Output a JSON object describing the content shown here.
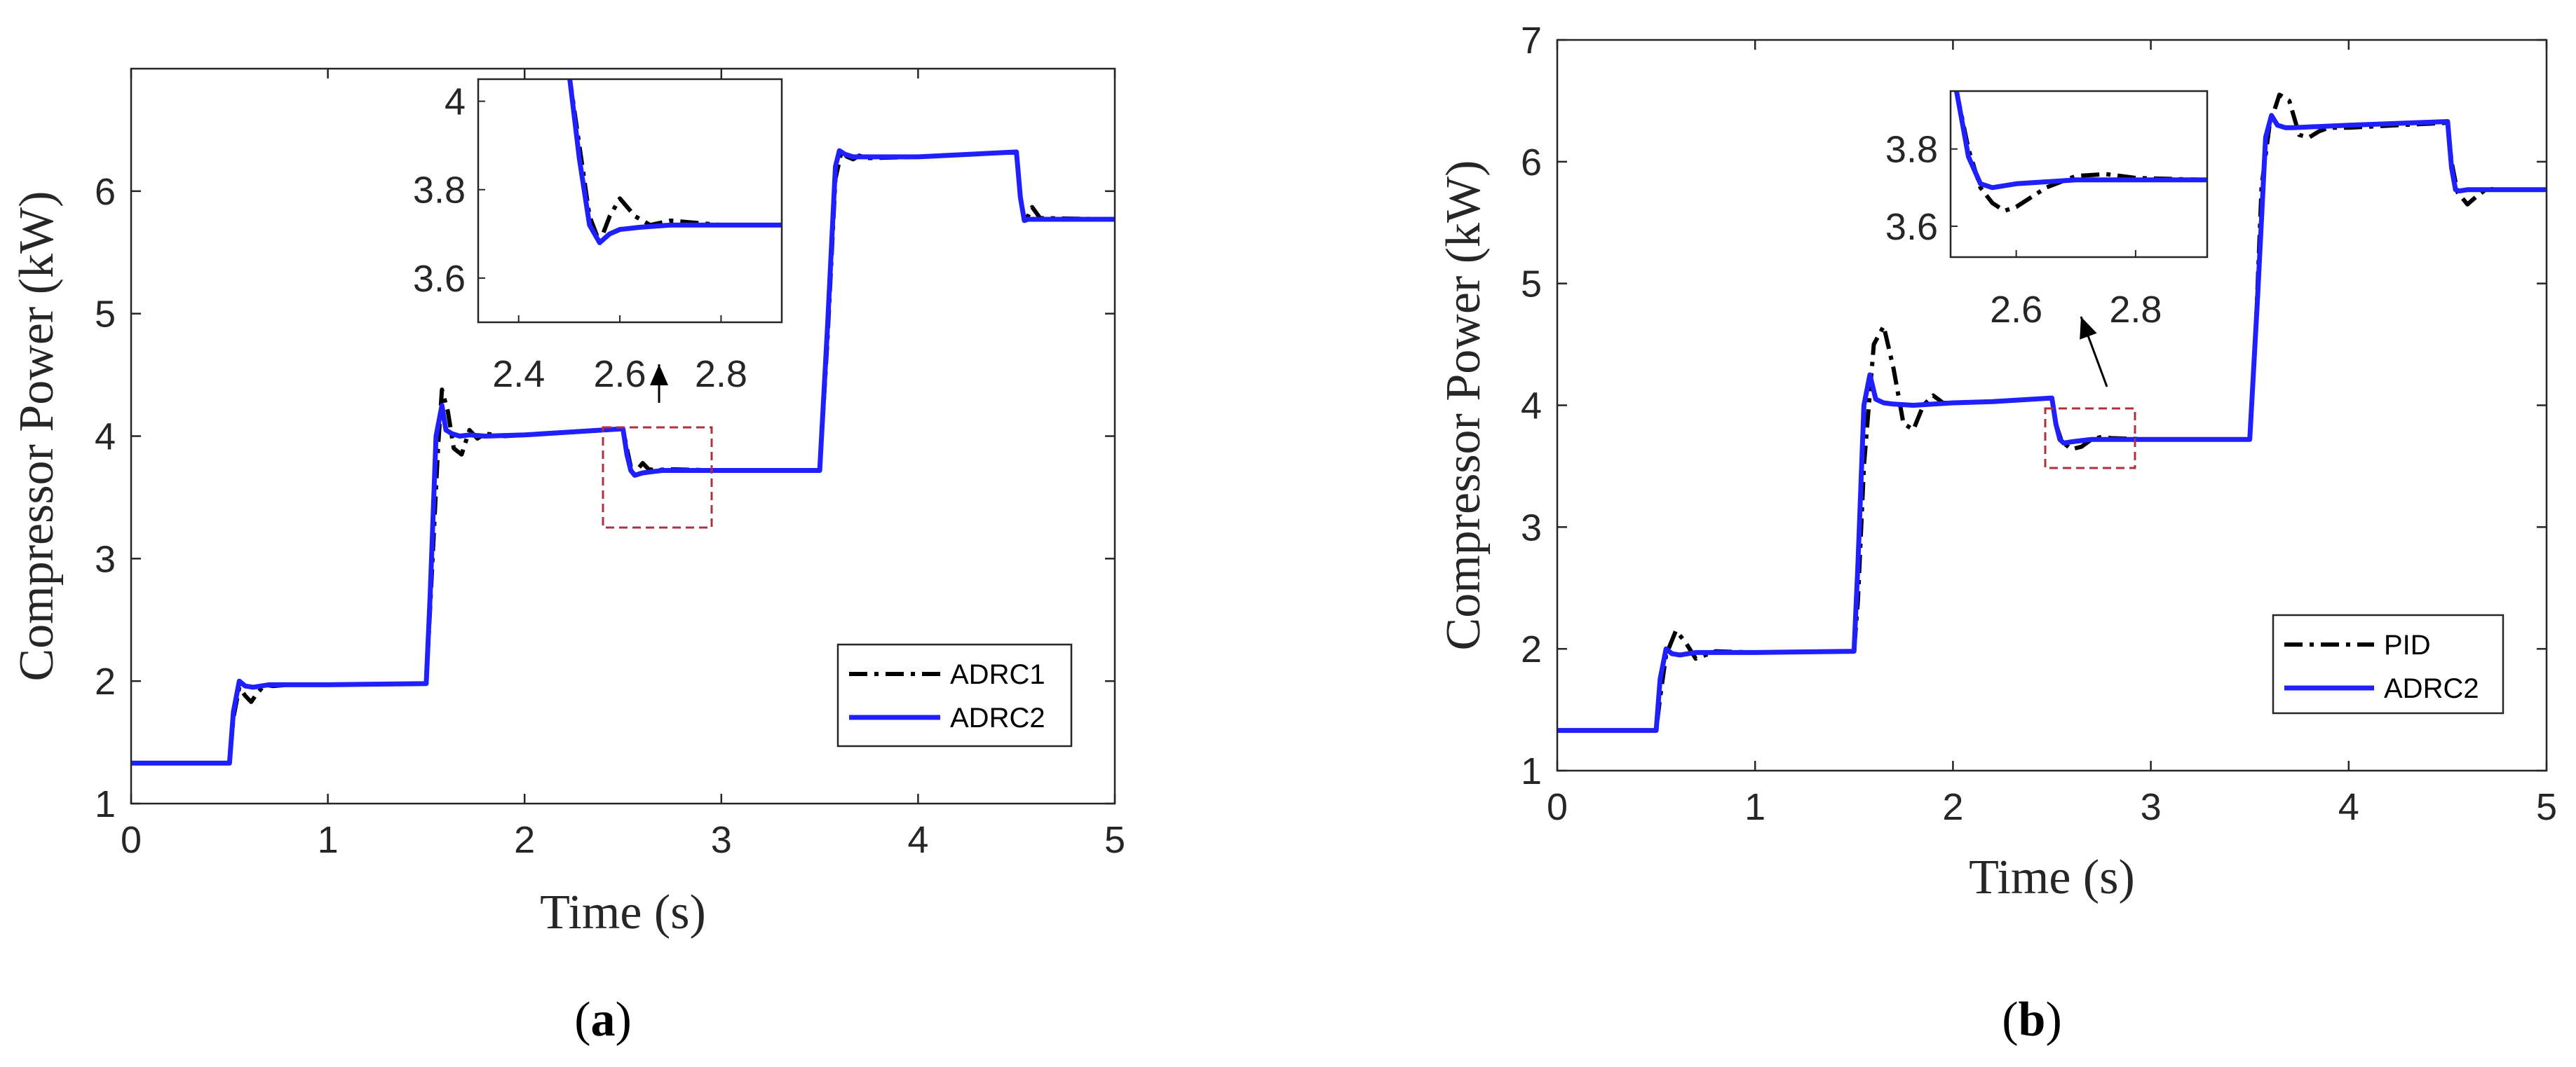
{
  "colors": {
    "series1": "#000000",
    "series2": "#1f1fff",
    "zoom_box": "#b03040",
    "axis": "#262626"
  },
  "chart_data": [
    {
      "type": "line",
      "panel_label": {
        "open": "(",
        "letter": "a",
        "close": ")"
      },
      "xlabel": "Time (s)",
      "ylabel": "Compressor Power (kW)",
      "xlim": [
        0,
        5
      ],
      "ylim": [
        1,
        7
      ],
      "xticks": [
        "0",
        "1",
        "2",
        "3",
        "4",
        "5"
      ],
      "yticks": [
        "1",
        "2",
        "3",
        "4",
        "5",
        "6"
      ],
      "grid": false,
      "legend_position": "lower-right",
      "series": [
        {
          "name": "ADRC1",
          "style": "dash-dot",
          "x": [
            0,
            0.5,
            0.52,
            0.55,
            0.58,
            0.61,
            0.64,
            0.68,
            0.72,
            0.8,
            1.0,
            1.5,
            1.52,
            1.56,
            1.58,
            1.61,
            1.64,
            1.68,
            1.72,
            1.76,
            1.8,
            1.9,
            2.0,
            2.2,
            2.5,
            2.52,
            2.54,
            2.56,
            2.58,
            2.6,
            2.63,
            2.67,
            2.72,
            3.0,
            3.5,
            3.54,
            3.58,
            3.61,
            3.64,
            3.67,
            3.7,
            3.75,
            4.0,
            4.5,
            4.52,
            4.54,
            4.56,
            4.58,
            4.62,
            5.0
          ],
          "y": [
            1.33,
            1.33,
            1.7,
            1.95,
            1.88,
            1.83,
            1.9,
            1.97,
            1.96,
            1.97,
            1.97,
            1.98,
            2.6,
            3.9,
            4.38,
            4.2,
            3.9,
            3.85,
            4.05,
            3.98,
            4.02,
            4.0,
            4.01,
            4.03,
            4.06,
            3.9,
            3.75,
            3.68,
            3.74,
            3.78,
            3.73,
            3.72,
            3.73,
            3.72,
            3.72,
            4.8,
            6.1,
            6.32,
            6.28,
            6.26,
            6.29,
            6.27,
            6.28,
            6.32,
            5.95,
            5.77,
            5.8,
            5.87,
            5.78,
            5.77
          ]
        },
        {
          "name": "ADRC2",
          "style": "solid",
          "x": [
            0,
            0.5,
            0.52,
            0.55,
            0.58,
            0.62,
            0.66,
            0.7,
            0.8,
            1.0,
            1.5,
            1.52,
            1.55,
            1.58,
            1.6,
            1.63,
            1.67,
            1.72,
            1.8,
            2.0,
            2.2,
            2.5,
            2.52,
            2.54,
            2.56,
            2.6,
            2.65,
            2.7,
            3.0,
            3.5,
            3.54,
            3.58,
            3.6,
            3.63,
            3.67,
            3.72,
            4.0,
            4.5,
            4.52,
            4.54,
            4.56,
            4.6,
            5.0
          ],
          "y": [
            1.33,
            1.33,
            1.75,
            2.0,
            1.96,
            1.95,
            1.96,
            1.97,
            1.97,
            1.97,
            1.98,
            2.7,
            4.0,
            4.25,
            4.05,
            4.02,
            4.0,
            4.01,
            4.0,
            4.01,
            4.03,
            4.06,
            3.85,
            3.72,
            3.68,
            3.7,
            3.71,
            3.72,
            3.72,
            3.72,
            4.9,
            6.2,
            6.33,
            6.3,
            6.28,
            6.28,
            6.28,
            6.32,
            5.95,
            5.76,
            5.77,
            5.77,
            5.77
          ]
        }
      ],
      "inset": {
        "xlim": [
          2.32,
          2.92
        ],
        "ylim": [
          3.5,
          4.05
        ],
        "xticks": [
          "2.4",
          "2.6",
          "2.8"
        ],
        "yticks": [
          "3.6",
          "3.8",
          "4"
        ],
        "series": [
          {
            "name": "ADRC1",
            "x": [
              2.5,
              2.52,
              2.54,
              2.56,
              2.58,
              2.6,
              2.63,
              2.66,
              2.7,
              2.8,
              2.92
            ],
            "y": [
              4.06,
              3.9,
              3.74,
              3.68,
              3.74,
              3.78,
              3.74,
              3.72,
              3.73,
              3.72,
              3.72
            ]
          },
          {
            "name": "ADRC2",
            "x": [
              2.5,
              2.52,
              2.54,
              2.56,
              2.58,
              2.6,
              2.64,
              2.7,
              2.8,
              2.92
            ],
            "y": [
              4.06,
              3.87,
              3.72,
              3.68,
              3.7,
              3.71,
              3.715,
              3.72,
              3.72,
              3.72
            ]
          }
        ]
      }
    },
    {
      "type": "line",
      "panel_label": {
        "open": "(",
        "letter": "b",
        "close": ")"
      },
      "xlabel": "Time (s)",
      "ylabel": "Compressor Power (kW)",
      "xlim": [
        0,
        5
      ],
      "ylim": [
        1,
        7
      ],
      "xticks": [
        "0",
        "1",
        "2",
        "3",
        "4",
        "5"
      ],
      "yticks": [
        "1",
        "2",
        "3",
        "4",
        "5",
        "6",
        "7"
      ],
      "grid": false,
      "legend_position": "lower-right",
      "series": [
        {
          "name": "PID",
          "style": "dash-dot",
          "x": [
            0,
            0.5,
            0.52,
            0.55,
            0.6,
            0.65,
            0.7,
            0.75,
            0.8,
            1.0,
            1.5,
            1.52,
            1.55,
            1.6,
            1.65,
            1.7,
            1.75,
            1.8,
            1.85,
            1.9,
            1.95,
            2.0,
            2.2,
            2.5,
            2.52,
            2.55,
            2.6,
            2.65,
            2.7,
            2.75,
            2.8,
            3.0,
            3.5,
            3.53,
            3.56,
            3.6,
            3.65,
            3.7,
            3.75,
            3.8,
            3.85,
            3.9,
            4.0,
            4.5,
            4.52,
            4.55,
            4.6,
            4.65,
            4.7,
            4.75,
            5.0
          ],
          "y": [
            1.33,
            1.33,
            1.6,
            1.95,
            2.15,
            2.05,
            1.92,
            1.95,
            1.98,
            1.97,
            1.98,
            2.4,
            3.5,
            4.5,
            4.65,
            4.3,
            3.85,
            3.8,
            4.0,
            4.08,
            4.02,
            4.02,
            4.03,
            4.06,
            3.85,
            3.7,
            3.64,
            3.66,
            3.72,
            3.74,
            3.73,
            3.72,
            3.72,
            4.6,
            5.8,
            6.3,
            6.55,
            6.5,
            6.22,
            6.2,
            6.25,
            6.28,
            6.28,
            6.32,
            6.0,
            5.75,
            5.65,
            5.72,
            5.78,
            5.77,
            5.77
          ]
        },
        {
          "name": "ADRC2",
          "style": "solid",
          "x": [
            0,
            0.5,
            0.52,
            0.55,
            0.58,
            0.62,
            0.66,
            0.7,
            0.8,
            1.0,
            1.5,
            1.52,
            1.55,
            1.58,
            1.61,
            1.65,
            1.7,
            1.8,
            2.0,
            2.2,
            2.5,
            2.52,
            2.54,
            2.56,
            2.6,
            2.65,
            2.7,
            3.0,
            3.5,
            3.54,
            3.58,
            3.61,
            3.64,
            3.68,
            3.72,
            4.0,
            4.5,
            4.52,
            4.54,
            4.56,
            4.6,
            5.0
          ],
          "y": [
            1.33,
            1.33,
            1.75,
            2.0,
            1.96,
            1.95,
            1.96,
            1.97,
            1.97,
            1.97,
            1.98,
            2.7,
            4.0,
            4.25,
            4.05,
            4.02,
            4.01,
            4.0,
            4.02,
            4.03,
            4.06,
            3.85,
            3.72,
            3.69,
            3.7,
            3.71,
            3.72,
            3.72,
            3.72,
            4.9,
            6.2,
            6.38,
            6.3,
            6.28,
            6.28,
            6.3,
            6.33,
            5.95,
            5.77,
            5.76,
            5.77,
            5.77
          ]
        }
      ],
      "inset": {
        "xlim": [
          2.49,
          2.92
        ],
        "ylim": [
          3.52,
          3.95
        ],
        "xticks": [
          "2.6",
          "2.8"
        ],
        "yticks": [
          "3.6",
          "3.8"
        ],
        "series": [
          {
            "name": "PID",
            "x": [
              2.5,
              2.52,
              2.54,
              2.56,
              2.58,
              2.6,
              2.62,
              2.65,
              2.7,
              2.75,
              2.8,
              2.92
            ],
            "y": [
              3.95,
              3.8,
              3.7,
              3.66,
              3.64,
              3.65,
              3.67,
              3.7,
              3.73,
              3.735,
              3.725,
              3.72
            ]
          },
          {
            "name": "ADRC2",
            "x": [
              2.5,
              2.52,
              2.54,
              2.56,
              2.6,
              2.65,
              2.7,
              2.8,
              2.92
            ],
            "y": [
              3.95,
              3.78,
              3.71,
              3.7,
              3.71,
              3.715,
              3.72,
              3.72,
              3.72
            ]
          }
        ]
      }
    }
  ]
}
